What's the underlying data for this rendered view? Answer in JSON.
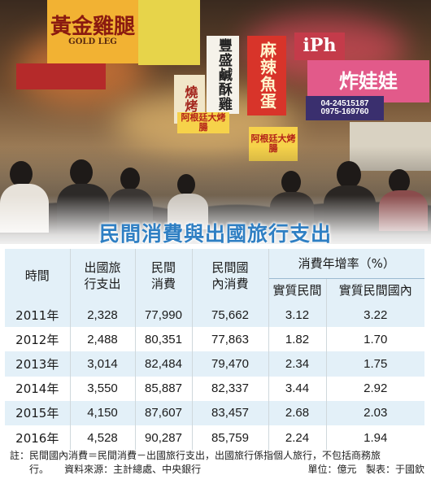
{
  "photo": {
    "signs": [
      {
        "text": "黃金雞腿",
        "sub": "GOLD LEG",
        "name": "gold-chicken-leg-sign"
      },
      {
        "text": "豐盛鹹酥雞",
        "name": "fried-chicken-sign"
      },
      {
        "text": "麻辣魚蛋",
        "name": "spicy-fishball-sign"
      },
      {
        "text": "燒烤",
        "name": "bbq-sign-left"
      },
      {
        "text": "阿根廷大烤腸",
        "name": "argentina-sausage-sign"
      },
      {
        "text": "炸娃娃",
        "name": "fried-doll-sign"
      },
      {
        "text": "04-24515187",
        "name": "phone-number-1"
      },
      {
        "text": "0975-169760",
        "name": "phone-number-2"
      },
      {
        "text": "iPh",
        "name": "iphone-sign"
      }
    ]
  },
  "title": "民間消費與出國旅行支出",
  "table": {
    "headers": {
      "time": "時間",
      "outbound_line1": "出國旅",
      "outbound_line2": "行支出",
      "private_line1": "民間",
      "private_line2": "消費",
      "domestic_line1": "民間國",
      "domestic_line2": "內消費",
      "growth": "消費年增率（%）",
      "real_private": "實質民間",
      "real_domestic": "實質民間國內"
    },
    "rows": [
      {
        "year": "2011年",
        "outbound": "2,328",
        "private": "77,990",
        "domestic": "75,662",
        "real_private": "3.12",
        "real_domestic": "3.22"
      },
      {
        "year": "2012年",
        "outbound": "2,488",
        "private": "80,351",
        "domestic": "77,863",
        "real_private": "1.82",
        "real_domestic": "1.70"
      },
      {
        "year": "2013年",
        "outbound": "3,014",
        "private": "82,484",
        "domestic": "79,470",
        "real_private": "2.34",
        "real_domestic": "1.75"
      },
      {
        "year": "2014年",
        "outbound": "3,550",
        "private": "85,887",
        "domestic": "82,337",
        "real_private": "3.44",
        "real_domestic": "2.92"
      },
      {
        "year": "2015年",
        "outbound": "4,150",
        "private": "87,607",
        "domestic": "83,457",
        "real_private": "2.68",
        "real_domestic": "2.03"
      },
      {
        "year": "2016年",
        "outbound": "4,528",
        "private": "90,287",
        "domestic": "85,759",
        "real_private": "2.24",
        "real_domestic": "1.94"
      }
    ]
  },
  "note": {
    "line1": "註：民間國內消費＝民間消費－出國旅行支出，出國旅行係指個人旅行，不包括商務旅",
    "line2_start": "行。",
    "source": "資料來源：主計總處、中央銀行",
    "unit": "單位：億元",
    "maker": "製表：于國欽"
  },
  "colors": {
    "title": "#2f7fc3",
    "band": "#e3f0f8"
  }
}
